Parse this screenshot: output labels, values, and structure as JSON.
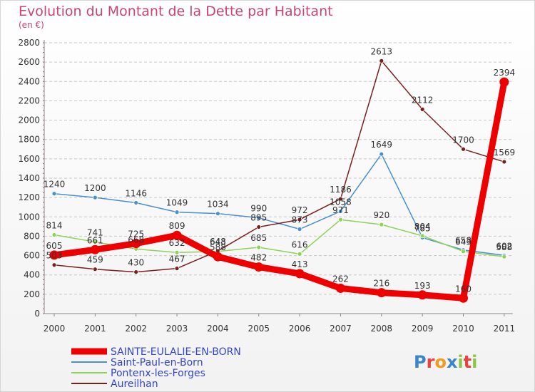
{
  "page": {
    "title": "Evolution du Montant de la Dette par Habitant",
    "subtitle": "(en €)"
  },
  "logo": {
    "text": "Proxiti",
    "letters": [
      "P",
      "r",
      "o",
      "x",
      "i",
      "t",
      "i"
    ],
    "letter_colors": [
      "#3a86c8",
      "#e8423c",
      "#f39a1e",
      "#3a86c8",
      "#8cc63f",
      "#e8423c",
      "#8cc63f"
    ]
  },
  "chart_data": {
    "type": "line",
    "title": "Evolution du Montant de la Dette par Habitant",
    "subtitle": "(en €)",
    "xlabel": "",
    "ylabel": "",
    "categories": [
      "2000",
      "2001",
      "2002",
      "2003",
      "2004",
      "2005",
      "2006",
      "2007",
      "2008",
      "2009",
      "2010",
      "2011"
    ],
    "ylim": [
      0,
      2800
    ],
    "yticks": [
      0,
      200,
      400,
      600,
      800,
      1000,
      1200,
      1400,
      1600,
      1800,
      2000,
      2200,
      2400,
      2600,
      2800
    ],
    "grid": "horizontal dashed",
    "legend_position": "bottom-left",
    "series": [
      {
        "name": "SAINTE-EULALIE-EN-BORN",
        "color": "#ee0000",
        "emphasis": "thick",
        "values": [
          605,
          661,
          725,
          809,
          588,
          482,
          413,
          262,
          216,
          193,
          160,
          2394
        ],
        "labels": [
          "605",
          "661",
          "725",
          "809",
          "588",
          "482",
          "413",
          "262",
          "216",
          "193",
          "160",
          "2394"
        ]
      },
      {
        "name": "Saint-Paul-en-Born",
        "color": "#4a8fd0",
        "emphasis": "thin",
        "values": [
          1240,
          1200,
          1146,
          1049,
          1034,
          990,
          873,
          1058,
          1649,
          785,
          658,
          602
        ],
        "labels": [
          "1240",
          "1200",
          "1146",
          "1049",
          "1034",
          "990",
          "873",
          "1058",
          "1649",
          "785",
          "658",
          "602"
        ]
      },
      {
        "name": "Pontenx-les-Forges",
        "color": "#8ed25a",
        "emphasis": "thin",
        "values": [
          814,
          741,
          668,
          632,
          643,
          685,
          616,
          971,
          920,
          804,
          643,
          588
        ],
        "labels": [
          "814",
          "741",
          "668",
          "632",
          "643",
          "685",
          "616",
          "971",
          "920",
          "804",
          "643",
          "588"
        ]
      },
      {
        "name": "Aureilhan",
        "color": "#7a1f1f",
        "emphasis": "thin",
        "values": [
          503,
          459,
          430,
          467,
          648,
          895,
          972,
          1186,
          2613,
          2112,
          1700,
          1569
        ],
        "labels": [
          "503",
          "459",
          "430",
          "467",
          "648",
          "895",
          "972",
          "1186",
          "2613",
          "2112",
          "1700",
          "1569"
        ]
      }
    ]
  }
}
